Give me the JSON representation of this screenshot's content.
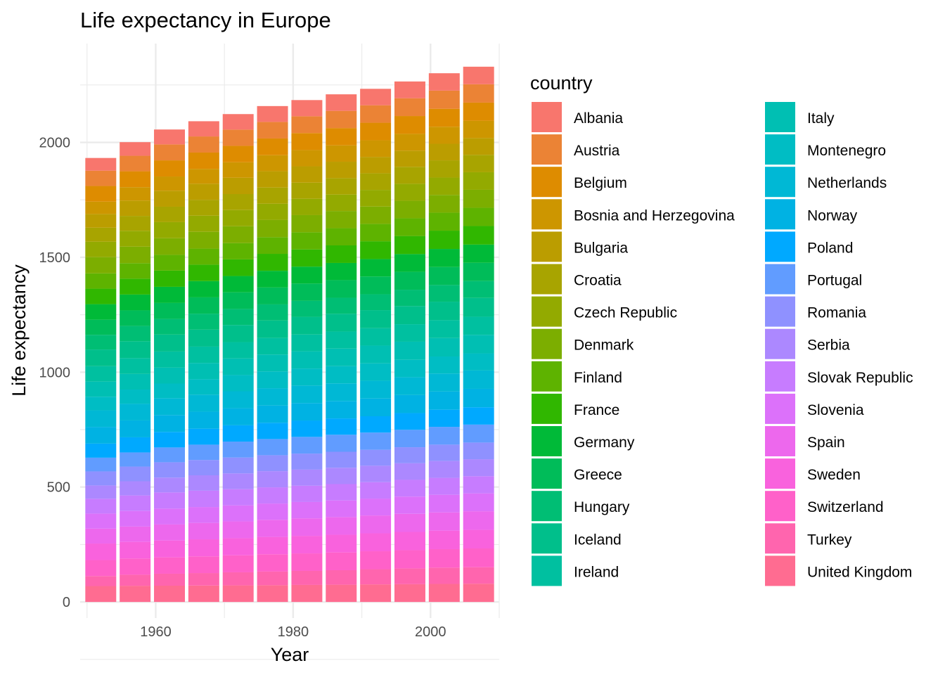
{
  "chart_data": {
    "type": "bar",
    "stacked": true,
    "title": "Life expectancy in Europe",
    "xlabel": "Year",
    "ylabel": "Life expectancy",
    "x": [
      1952,
      1957,
      1962,
      1967,
      1972,
      1977,
      1982,
      1987,
      1992,
      1997,
      2002,
      2007
    ],
    "xlim": [
      1949,
      2010
    ],
    "ylim": [
      -70,
      2430
    ],
    "xticks": [
      1960,
      1980,
      2000
    ],
    "yticks": [
      0,
      500,
      1000,
      1500,
      2000
    ],
    "grid": true,
    "legend": {
      "title": "country",
      "position": "right",
      "columns": 2
    },
    "series": [
      {
        "name": "Albania",
        "color": "#F8766D",
        "values": [
          55.23,
          59.28,
          64.82,
          66.22,
          67.69,
          68.93,
          70.42,
          72.0,
          71.581,
          72.95,
          75.651,
          76.423
        ]
      },
      {
        "name": "Austria",
        "color": "#EB8335",
        "values": [
          66.8,
          67.48,
          69.54,
          70.14,
          70.63,
          72.17,
          73.18,
          74.94,
          76.04,
          77.51,
          78.98,
          79.829
        ]
      },
      {
        "name": "Belgium",
        "color": "#DE8C00",
        "values": [
          68.0,
          69.24,
          70.25,
          70.94,
          71.44,
          72.8,
          73.93,
          75.35,
          76.46,
          77.53,
          78.32,
          79.441
        ]
      },
      {
        "name": "Bosnia and Herzegovina",
        "color": "#CD9600",
        "values": [
          53.82,
          58.45,
          61.93,
          64.79,
          67.45,
          69.86,
          70.69,
          71.14,
          72.178,
          73.244,
          74.09,
          74.852
        ]
      },
      {
        "name": "Bulgaria",
        "color": "#BB9D00",
        "values": [
          59.6,
          66.61,
          69.51,
          70.42,
          70.9,
          70.81,
          71.08,
          71.34,
          71.19,
          70.32,
          72.14,
          73.005
        ]
      },
      {
        "name": "Croatia",
        "color": "#A8A400",
        "values": [
          61.21,
          64.77,
          67.13,
          68.5,
          69.61,
          70.64,
          70.46,
          71.52,
          72.527,
          73.68,
          74.876,
          75.748
        ]
      },
      {
        "name": "Czech Republic",
        "color": "#93AA00",
        "values": [
          66.87,
          69.03,
          69.9,
          70.38,
          70.29,
          70.71,
          70.96,
          71.58,
          72.4,
          74.01,
          75.51,
          76.486
        ]
      },
      {
        "name": "Denmark",
        "color": "#7CAE00",
        "values": [
          70.78,
          71.81,
          72.35,
          72.96,
          73.47,
          74.69,
          74.63,
          74.8,
          75.33,
          76.11,
          77.18,
          78.332
        ]
      },
      {
        "name": "Finland",
        "color": "#5EB300",
        "values": [
          66.55,
          67.49,
          68.75,
          69.83,
          70.87,
          72.52,
          74.55,
          74.83,
          75.7,
          77.13,
          78.37,
          79.313
        ]
      },
      {
        "name": "France",
        "color": "#30B700",
        "values": [
          67.41,
          68.93,
          70.51,
          71.55,
          72.38,
          73.83,
          74.89,
          76.34,
          77.46,
          78.64,
          79.59,
          80.657
        ]
      },
      {
        "name": "Germany",
        "color": "#00BA38",
        "values": [
          67.5,
          69.1,
          70.3,
          70.8,
          71.0,
          72.5,
          73.8,
          74.847,
          76.07,
          77.34,
          78.67,
          79.406
        ]
      },
      {
        "name": "Greece",
        "color": "#00BC59",
        "values": [
          65.86,
          67.86,
          69.51,
          71.0,
          72.34,
          73.68,
          75.24,
          76.67,
          77.03,
          77.869,
          78.256,
          79.483
        ]
      },
      {
        "name": "Hungary",
        "color": "#00BE74",
        "values": [
          64.03,
          66.41,
          67.96,
          69.5,
          69.76,
          69.95,
          69.39,
          69.58,
          69.17,
          71.04,
          72.59,
          73.338
        ]
      },
      {
        "name": "Iceland",
        "color": "#00BF8B",
        "values": [
          72.49,
          73.47,
          73.68,
          73.73,
          74.46,
          76.11,
          76.99,
          77.23,
          78.77,
          78.95,
          80.5,
          81.757
        ]
      },
      {
        "name": "Ireland",
        "color": "#00C0A0",
        "values": [
          66.91,
          68.9,
          70.29,
          71.08,
          71.28,
          72.03,
          73.1,
          74.36,
          75.467,
          76.122,
          77.783,
          78.885
        ]
      },
      {
        "name": "Italy",
        "color": "#00BFB3",
        "values": [
          65.94,
          67.81,
          69.24,
          71.06,
          72.19,
          73.48,
          74.98,
          76.42,
          77.44,
          78.82,
          80.24,
          80.546
        ]
      },
      {
        "name": "Montenegro",
        "color": "#00BDC4",
        "values": [
          59.164,
          61.448,
          63.728,
          67.178,
          70.636,
          73.066,
          74.101,
          74.865,
          75.435,
          75.445,
          73.981,
          74.543
        ]
      },
      {
        "name": "Netherlands",
        "color": "#00B8D5",
        "values": [
          72.13,
          72.99,
          73.23,
          73.82,
          73.75,
          75.24,
          76.05,
          76.83,
          77.42,
          78.03,
          78.53,
          79.762
        ]
      },
      {
        "name": "Norway",
        "color": "#00B2E3",
        "values": [
          72.67,
          73.44,
          73.47,
          74.08,
          74.34,
          75.37,
          75.97,
          75.89,
          77.32,
          78.32,
          79.05,
          80.196
        ]
      },
      {
        "name": "Poland",
        "color": "#00A9FF",
        "values": [
          61.31,
          65.77,
          67.64,
          69.61,
          70.85,
          70.67,
          71.32,
          70.98,
          70.99,
          72.75,
          74.67,
          75.563
        ]
      },
      {
        "name": "Portugal",
        "color": "#619CFF",
        "values": [
          59.82,
          61.51,
          64.39,
          66.6,
          69.26,
          70.41,
          72.77,
          74.06,
          74.86,
          75.97,
          77.29,
          78.098
        ]
      },
      {
        "name": "Romania",
        "color": "#8F91FF",
        "values": [
          61.05,
          64.1,
          66.8,
          66.8,
          69.21,
          69.46,
          69.66,
          69.53,
          69.36,
          69.72,
          71.322,
          72.476
        ]
      },
      {
        "name": "Serbia",
        "color": "#AC88FF",
        "values": [
          57.996,
          61.685,
          64.531,
          66.914,
          68.7,
          70.3,
          70.162,
          71.218,
          71.659,
          72.232,
          73.213,
          74.002
        ]
      },
      {
        "name": "Slovak Republic",
        "color": "#C77CFF",
        "values": [
          64.36,
          67.45,
          70.33,
          70.98,
          70.35,
          70.45,
          70.8,
          71.08,
          71.38,
          72.71,
          73.8,
          74.663
        ]
      },
      {
        "name": "Slovenia",
        "color": "#DC71FA",
        "values": [
          65.57,
          67.85,
          69.15,
          69.18,
          69.82,
          70.97,
          71.063,
          72.25,
          73.64,
          75.13,
          76.66,
          77.926
        ]
      },
      {
        "name": "Spain",
        "color": "#ED68ED",
        "values": [
          64.94,
          66.66,
          69.69,
          71.44,
          73.06,
          74.39,
          76.3,
          76.9,
          77.57,
          78.77,
          79.78,
          80.941
        ]
      },
      {
        "name": "Sweden",
        "color": "#F962DD",
        "values": [
          71.86,
          72.49,
          73.37,
          74.16,
          74.72,
          75.44,
          76.42,
          77.19,
          78.16,
          79.39,
          80.04,
          80.884
        ]
      },
      {
        "name": "Switzerland",
        "color": "#FF61C9",
        "values": [
          69.62,
          70.56,
          71.32,
          72.77,
          73.78,
          75.39,
          76.21,
          77.41,
          78.03,
          79.37,
          80.62,
          81.701
        ]
      },
      {
        "name": "Turkey",
        "color": "#FF65AE",
        "values": [
          43.585,
          48.079,
          52.098,
          54.336,
          57.005,
          59.507,
          61.036,
          63.108,
          66.146,
          68.835,
          70.845,
          71.777
        ]
      },
      {
        "name": "United Kingdom",
        "color": "#FF6C91",
        "values": [
          69.18,
          70.42,
          70.76,
          71.36,
          72.01,
          72.76,
          74.04,
          75.007,
          76.42,
          77.218,
          78.471,
          79.425
        ]
      }
    ]
  }
}
